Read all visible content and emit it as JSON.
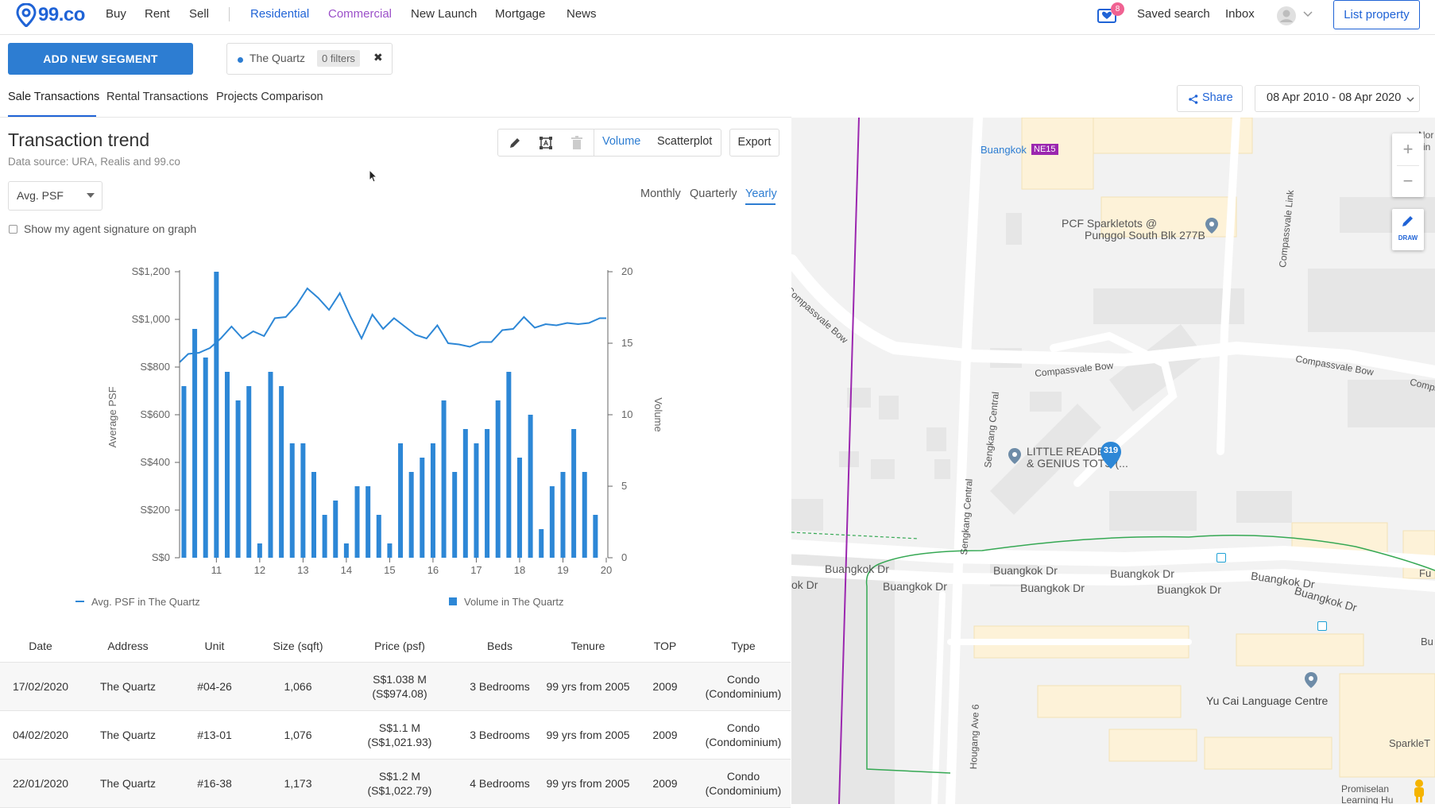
{
  "nav": {
    "logo": "99.co",
    "links": [
      "Buy",
      "Rent",
      "Sell"
    ],
    "residential": "Residential",
    "commercial": "Commercial",
    "links2": [
      "New Launch",
      "Mortgage",
      "News"
    ],
    "notif_count": "8",
    "saved_search": "Saved search",
    "inbox": "Inbox",
    "list_property": "List property"
  },
  "segment": {
    "add_button": "ADD NEW SEGMENT",
    "chip_name": "The Quartz",
    "chip_filters": "0 filters",
    "chip_remove": "✖"
  },
  "tabs": [
    "Sale Transactions",
    "Rental Transactions",
    "Projects Comparison"
  ],
  "share": "Share",
  "date_range": "08 Apr 2010 - 08 Apr 2020",
  "trend": {
    "title": "Transaction trend",
    "source": "Data source: URA, Realis and 99.co",
    "metric_select": "Avg. PSF",
    "view_volume": "Volume",
    "view_scatter": "Scatterplot",
    "export": "Export",
    "period_monthly": "Monthly",
    "period_quarterly": "Quarterly",
    "period_yearly": "Yearly",
    "signature_label": "Show my agent signature on graph"
  },
  "chart_data": {
    "type": "bar",
    "ylabel": "Average PSF",
    "y2label": "Volume",
    "ylim": [
      0,
      1200
    ],
    "y2lim": [
      0,
      20
    ],
    "yticks": [
      "S$0",
      "S$200",
      "S$400",
      "S$600",
      "S$800",
      "S$1,000",
      "S$1,200"
    ],
    "y2ticks": [
      "0",
      "5",
      "10",
      "15",
      "20"
    ],
    "xticks": [
      "11",
      "12",
      "13",
      "14",
      "15",
      "16",
      "17",
      "18",
      "19",
      "20"
    ],
    "x_range": [
      10.15,
      20.0
    ],
    "legend": [
      "Avg. PSF in The Quartz",
      "Volume in The Quartz"
    ],
    "series": [
      {
        "name": "Volume in The Quartz",
        "kind": "bar",
        "axis": "right",
        "x": [
          10.25,
          10.5,
          10.75,
          11.0,
          11.25,
          11.5,
          11.75,
          12.0,
          12.25,
          12.5,
          12.75,
          13.0,
          13.25,
          13.5,
          13.75,
          14.0,
          14.25,
          14.5,
          14.75,
          15.0,
          15.25,
          15.5,
          15.75,
          16.0,
          16.25,
          16.5,
          16.75,
          17.0,
          17.25,
          17.5,
          17.75,
          18.0,
          18.25,
          18.5,
          18.75,
          19.0,
          19.25,
          19.5,
          19.75,
          20.0
        ],
        "values": [
          12,
          16,
          14,
          20,
          13,
          11,
          12,
          1,
          13,
          12,
          8,
          8,
          6,
          3,
          4,
          1,
          5,
          5,
          3,
          1,
          8,
          6,
          7,
          8,
          11,
          6,
          9,
          8,
          9,
          11,
          13,
          7,
          10,
          2,
          5,
          6,
          9,
          6,
          3,
          0
        ]
      },
      {
        "name": "Avg. PSF in The Quartz",
        "kind": "line",
        "axis": "left",
        "x": [
          10.15,
          10.35,
          10.6,
          10.85,
          11.1,
          11.35,
          11.6,
          11.85,
          12.1,
          12.35,
          12.6,
          12.85,
          13.1,
          13.35,
          13.6,
          13.85,
          14.1,
          14.35,
          14.6,
          14.85,
          15.1,
          15.35,
          15.6,
          15.85,
          16.1,
          16.35,
          16.6,
          16.85,
          17.1,
          17.35,
          17.6,
          17.85,
          18.1,
          18.35,
          18.6,
          18.85,
          19.1,
          19.35,
          19.6,
          19.85,
          20.0
        ],
        "values": [
          820,
          855,
          860,
          880,
          920,
          970,
          920,
          950,
          930,
          1005,
          1010,
          1060,
          1130,
          1090,
          1040,
          1110,
          1010,
          920,
          1020,
          960,
          1005,
          970,
          935,
          920,
          975,
          900,
          895,
          885,
          905,
          905,
          955,
          960,
          1010,
          965,
          980,
          975,
          985,
          980,
          985,
          1005,
          1005
        ]
      }
    ]
  },
  "table": {
    "headers": [
      "Date",
      "Address",
      "Unit",
      "Size (sqft)",
      "Price (psf)",
      "Beds",
      "Tenure",
      "TOP",
      "Type"
    ],
    "rows": [
      {
        "date": "17/02/2020",
        "address": "The Quartz",
        "unit": "#04-26",
        "size": "1,066",
        "price": "S$1.038 M",
        "psf": "(S$974.08)",
        "beds": "3 Bedrooms",
        "tenure": "99 yrs from 2005",
        "top": "2009",
        "type1": "Condo",
        "type2": "(Condominium)"
      },
      {
        "date": "04/02/2020",
        "address": "The Quartz",
        "unit": "#13-01",
        "size": "1,076",
        "price": "S$1.1 M",
        "psf": "(S$1,021.93)",
        "beds": "3 Bedrooms",
        "tenure": "99 yrs from 2005",
        "top": "2009",
        "type1": "Condo",
        "type2": "(Condominium)"
      },
      {
        "date": "22/01/2020",
        "address": "The Quartz",
        "unit": "#16-38",
        "size": "1,173",
        "price": "S$1.2 M",
        "psf": "(S$1,022.79)",
        "beds": "4 Bedrooms",
        "tenure": "99 yrs from 2005",
        "top": "2009",
        "type1": "Condo",
        "type2": "(Condominium)"
      }
    ]
  },
  "map": {
    "station": "Buangkok",
    "station_code": "NE15",
    "poi_pcf_1": "PCF Sparkletots @",
    "poi_pcf_2": "Punggol South Blk 277B",
    "poi_reader_1": "LITTLE READER",
    "poi_reader_2": "& GENIUS TOTS (...",
    "marker_count": "319",
    "poi_yucai": "Yu Cai Language Centre",
    "road_compassvale_bow": "Compassvale Bow",
    "road_compassvale_link": "Compassvale Link",
    "road_sengkang_central": "Sengkang Central",
    "road_buangkok_dr": "Buangkok Dr",
    "road_hougang_ave6": "Hougang Ave 6",
    "edge_nor": "Nor",
    "edge_rin": "rin",
    "edge_comp": "Compa",
    "edge_fu": "Fu",
    "edge_bu": "Bu",
    "edge_sparkle": "SparkleT",
    "edge_kdr": "ok Dr",
    "edge_promis1": "Promiselan",
    "edge_promis2": "Learning Hu",
    "draw_label": "DRAW",
    "zoom_in": "+",
    "zoom_out": "−",
    "co": "Co"
  },
  "colors": {
    "brand": "#1f63d6",
    "bar": "#2d87d6",
    "commercial": "#9b4fc9",
    "mrt_line": "#9b27af"
  }
}
